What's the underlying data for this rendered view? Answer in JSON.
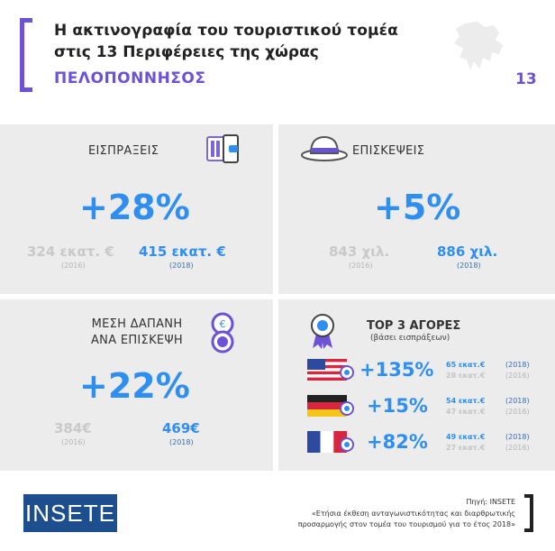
{
  "header": {
    "title_line1": "Η ακτινογραφία του τουριστικού τομέα",
    "title_line2": "στις 13 Περιφέρειες της χώρας",
    "region": "ΠΕΛΟΠΟΝΝΗΣΟΣ",
    "page_number": "13"
  },
  "receipts": {
    "label": "ΕΙΣΠΡΑΞΕΙΣ",
    "change": "+28%",
    "value_2016": "324 εκατ. €",
    "year_2016": "(2016)",
    "value_2018": "415 εκατ. €",
    "year_2018": "(2018)"
  },
  "visits": {
    "label": "ΕΠΙΣΚΕΨΕΙΣ",
    "change": "+5%",
    "value_2016": "843 χιλ.",
    "year_2016": "(2016)",
    "value_2018": "886 χιλ.",
    "year_2018": "(2018)"
  },
  "spending": {
    "label_line1": "ΜΕΣΗ ΔΑΠΑΝΗ",
    "label_line2": "ΑΝΑ ΕΠΙΣΚΕΨΗ",
    "change": "+22%",
    "value_2016": "384€",
    "year_2016": "(2016)",
    "value_2018": "469€",
    "year_2018": "(2018)"
  },
  "markets": {
    "title": "TOP 3 ΑΓΟΡΕΣ",
    "subtitle": "(βάσει εισπράξεων)",
    "items": [
      {
        "flag": "usa-flag-icon",
        "change": "+135%",
        "value_2018": "65 εκατ.€",
        "value_2016": "28 εκατ.€",
        "year_2018": "(2018)",
        "year_2016": "(2016)"
      },
      {
        "flag": "germany-flag-icon",
        "change": "+15%",
        "value_2018": "54 εκατ.€",
        "value_2016": "47 εκατ.€",
        "year_2018": "(2018)",
        "year_2016": "(2016)"
      },
      {
        "flag": "france-flag-icon",
        "change": "+82%",
        "value_2018": "49 εκατ.€",
        "value_2016": "27 εκατ.€",
        "year_2018": "(2018)",
        "year_2016": "(2016)"
      }
    ]
  },
  "footer": {
    "logo_text": "INSETE",
    "source_line1": "Πηγή: INSETE",
    "source_line2": "«Ετήσια έκθεση ανταγωνιστικότητας και διαρθρωτικής",
    "source_line3": "προσαρμογής στον τομέα του τουρισμού για το έτος 2018»"
  },
  "colors": {
    "accent_purple": "#6b52d6",
    "accent_blue": "#2f8ff0",
    "panel_grey": "#ececec",
    "logo_navy": "#1d4f8f"
  }
}
